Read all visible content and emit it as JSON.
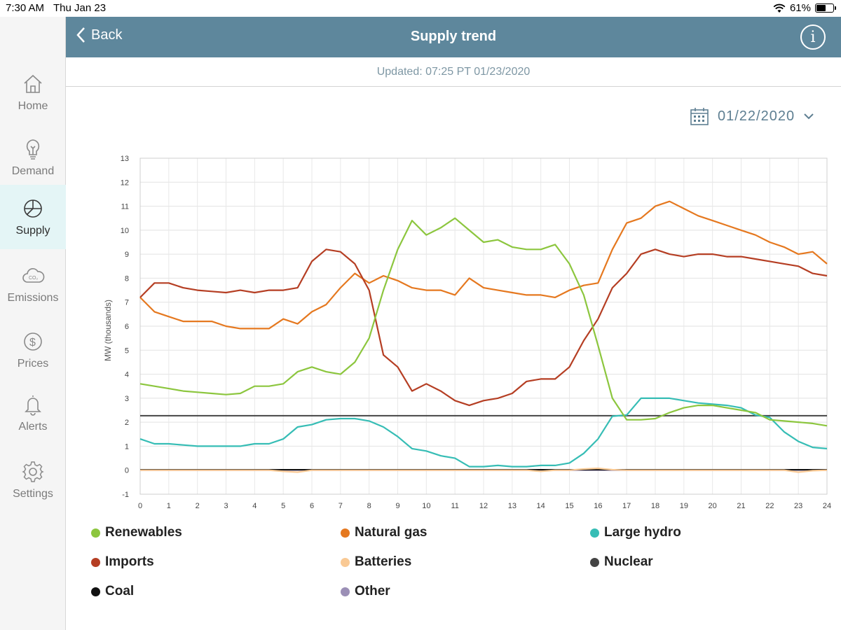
{
  "status_bar": {
    "time": "7:30 AM",
    "date": "Thu Jan 23",
    "battery": "61%",
    "battery_level": 0.61
  },
  "sidebar": {
    "items": [
      {
        "label": "Home",
        "icon": "home-icon",
        "active": false
      },
      {
        "label": "Demand",
        "icon": "lightbulb-icon",
        "active": false
      },
      {
        "label": "Supply",
        "icon": "pie-chart-icon",
        "active": true
      },
      {
        "label": "Emissions",
        "icon": "co2-cloud-icon",
        "active": false
      },
      {
        "label": "Prices",
        "icon": "dollar-icon",
        "active": false
      },
      {
        "label": "Alerts",
        "icon": "bell-icon",
        "active": false
      },
      {
        "label": "Settings",
        "icon": "gear-icon",
        "active": false
      }
    ]
  },
  "header": {
    "back_label": "Back",
    "title": "Supply trend",
    "info_icon": "info-icon"
  },
  "updated_text": "Updated: 07:25 PT 01/23/2020",
  "date_selector": {
    "value": "01/22/2020",
    "icon": "calendar-icon"
  },
  "colors": {
    "header": "#5e879c",
    "renewables": "#8cc63e",
    "natural_gas": "#e5781f",
    "large_hydro": "#36bdb5",
    "imports": "#b53e23",
    "batteries": "#f9c994",
    "nuclear": "#444444",
    "coal": "#111111",
    "other": "#9b8fb6"
  },
  "chart_data": {
    "type": "line",
    "ylabel": "MW (thousands)",
    "xlabel": "",
    "xlim": [
      0,
      24
    ],
    "ylim": [
      -1,
      13
    ],
    "x_ticks": [
      0,
      1,
      2,
      3,
      4,
      5,
      6,
      7,
      8,
      9,
      10,
      11,
      12,
      13,
      14,
      15,
      16,
      17,
      18,
      19,
      20,
      21,
      22,
      23,
      24
    ],
    "y_ticks": [
      -1,
      0,
      1,
      2,
      3,
      4,
      5,
      6,
      7,
      8,
      9,
      10,
      11,
      12,
      13
    ],
    "grid": true,
    "legend_position": "bottom",
    "x": [
      0,
      0.5,
      1,
      1.5,
      2,
      2.5,
      3,
      3.5,
      4,
      4.5,
      5,
      5.5,
      6,
      6.5,
      7,
      7.5,
      8,
      8.5,
      9,
      9.5,
      10,
      10.5,
      11,
      11.5,
      12,
      12.5,
      13,
      13.5,
      14,
      14.5,
      15,
      15.5,
      16,
      16.5,
      17,
      17.5,
      18,
      18.5,
      19,
      19.5,
      20,
      20.5,
      21,
      21.5,
      22,
      22.5,
      23,
      23.5,
      24
    ],
    "series": [
      {
        "name": "Renewables",
        "color_key": "renewables",
        "values": [
          3.6,
          3.5,
          3.4,
          3.3,
          3.25,
          3.2,
          3.15,
          3.2,
          3.5,
          3.5,
          3.6,
          4.1,
          4.3,
          4.1,
          4.0,
          4.5,
          5.5,
          7.5,
          9.2,
          10.4,
          9.8,
          10.1,
          10.5,
          10.0,
          9.5,
          9.6,
          9.3,
          9.2,
          9.2,
          9.4,
          8.6,
          7.3,
          5.2,
          3.0,
          2.1,
          2.1,
          2.15,
          2.4,
          2.6,
          2.7,
          2.7,
          2.6,
          2.5,
          2.4,
          2.1,
          2.05,
          2.0,
          1.95,
          1.85
        ]
      },
      {
        "name": "Natural gas",
        "color_key": "natural_gas",
        "values": [
          7.2,
          6.6,
          6.4,
          6.2,
          6.2,
          6.2,
          6.0,
          5.9,
          5.9,
          5.9,
          6.3,
          6.1,
          6.6,
          6.9,
          7.6,
          8.2,
          7.8,
          8.1,
          7.9,
          7.6,
          7.5,
          7.5,
          7.3,
          8.0,
          7.6,
          7.5,
          7.4,
          7.3,
          7.3,
          7.2,
          7.5,
          7.7,
          7.8,
          9.2,
          10.3,
          10.5,
          11.0,
          11.2,
          10.9,
          10.6,
          10.4,
          10.2,
          10.0,
          9.8,
          9.5,
          9.3,
          9.0,
          9.1,
          8.6
        ]
      },
      {
        "name": "Large hydro",
        "color_key": "large_hydro",
        "values": [
          1.3,
          1.1,
          1.1,
          1.05,
          1.0,
          1.0,
          1.0,
          1.0,
          1.1,
          1.1,
          1.3,
          1.8,
          1.9,
          2.1,
          2.15,
          2.15,
          2.05,
          1.8,
          1.4,
          0.9,
          0.8,
          0.6,
          0.5,
          0.15,
          0.15,
          0.2,
          0.15,
          0.15,
          0.2,
          0.2,
          0.3,
          0.7,
          1.3,
          2.25,
          2.3,
          3.0,
          3.0,
          3.0,
          2.9,
          2.8,
          2.75,
          2.7,
          2.6,
          2.3,
          2.2,
          1.6,
          1.2,
          0.95,
          0.9
        ]
      },
      {
        "name": "Imports",
        "color_key": "imports",
        "values": [
          7.2,
          7.8,
          7.8,
          7.6,
          7.5,
          7.45,
          7.4,
          7.5,
          7.4,
          7.5,
          7.5,
          7.6,
          8.7,
          9.2,
          9.1,
          8.6,
          7.5,
          4.8,
          4.3,
          3.3,
          3.6,
          3.3,
          2.9,
          2.7,
          2.9,
          3.0,
          3.2,
          3.7,
          3.8,
          3.8,
          4.3,
          5.4,
          6.3,
          7.6,
          8.2,
          9.0,
          9.2,
          9.0,
          8.9,
          9.0,
          9.0,
          8.9,
          8.9,
          8.8,
          8.7,
          8.6,
          8.5,
          8.2,
          8.1
        ]
      },
      {
        "name": "Batteries",
        "color_key": "batteries",
        "values": [
          0,
          0,
          0,
          0,
          0,
          0,
          0,
          0,
          0,
          0,
          -0.05,
          -0.08,
          0,
          0,
          0,
          0,
          0,
          0,
          0,
          0,
          0,
          0,
          0,
          0,
          0,
          0,
          0,
          0,
          -0.05,
          0,
          0,
          0.05,
          0.08,
          0.02,
          0,
          0,
          0,
          0,
          0,
          0,
          0,
          0,
          0,
          0,
          0,
          0,
          -0.08,
          -0.02,
          0
        ]
      },
      {
        "name": "Nuclear",
        "color_key": "nuclear",
        "values": [
          2.27,
          2.27,
          2.27,
          2.27,
          2.27,
          2.27,
          2.27,
          2.27,
          2.27,
          2.27,
          2.27,
          2.27,
          2.27,
          2.27,
          2.27,
          2.27,
          2.27,
          2.27,
          2.27,
          2.27,
          2.27,
          2.27,
          2.27,
          2.27,
          2.27,
          2.27,
          2.27,
          2.27,
          2.27,
          2.27,
          2.27,
          2.27,
          2.27,
          2.27,
          2.27,
          2.27,
          2.27,
          2.27,
          2.27,
          2.27,
          2.27,
          2.27,
          2.27,
          2.27,
          2.27,
          2.27,
          2.27,
          2.27,
          2.27
        ]
      },
      {
        "name": "Coal",
        "color_key": "coal",
        "values": [
          0.02,
          0.02,
          0.02,
          0.02,
          0.02,
          0.02,
          0.02,
          0.02,
          0.02,
          0.02,
          0.02,
          0.02,
          0.02,
          0.02,
          0.02,
          0.02,
          0.02,
          0.02,
          0.02,
          0.02,
          0.02,
          0.02,
          0.02,
          0.02,
          0.02,
          0.02,
          0.02,
          0.02,
          0.02,
          0.02,
          0.02,
          0.02,
          0.02,
          0.02,
          0.02,
          0.02,
          0.02,
          0.02,
          0.02,
          0.02,
          0.02,
          0.02,
          0.02,
          0.02,
          0.02,
          0.02,
          0.02,
          0.02,
          0.02
        ]
      },
      {
        "name": "Other",
        "color_key": "other",
        "values": [
          0,
          0,
          0,
          0,
          0,
          0,
          0,
          0,
          0,
          0,
          0,
          0,
          0,
          0,
          0,
          0,
          0,
          0,
          0,
          0,
          0,
          0,
          0,
          0,
          0,
          0,
          0,
          0,
          0,
          0,
          0,
          0,
          0,
          0,
          0,
          0,
          0,
          0,
          0,
          0,
          0,
          0,
          0,
          0,
          0,
          0,
          0,
          0,
          0
        ]
      }
    ]
  },
  "legend": [
    {
      "label": "Renewables",
      "color_key": "renewables"
    },
    {
      "label": "Natural gas",
      "color_key": "natural_gas"
    },
    {
      "label": "Large hydro",
      "color_key": "large_hydro"
    },
    {
      "label": "Imports",
      "color_key": "imports"
    },
    {
      "label": "Batteries",
      "color_key": "batteries"
    },
    {
      "label": "Nuclear",
      "color_key": "nuclear"
    },
    {
      "label": "Coal",
      "color_key": "coal"
    },
    {
      "label": "Other",
      "color_key": "other"
    }
  ]
}
